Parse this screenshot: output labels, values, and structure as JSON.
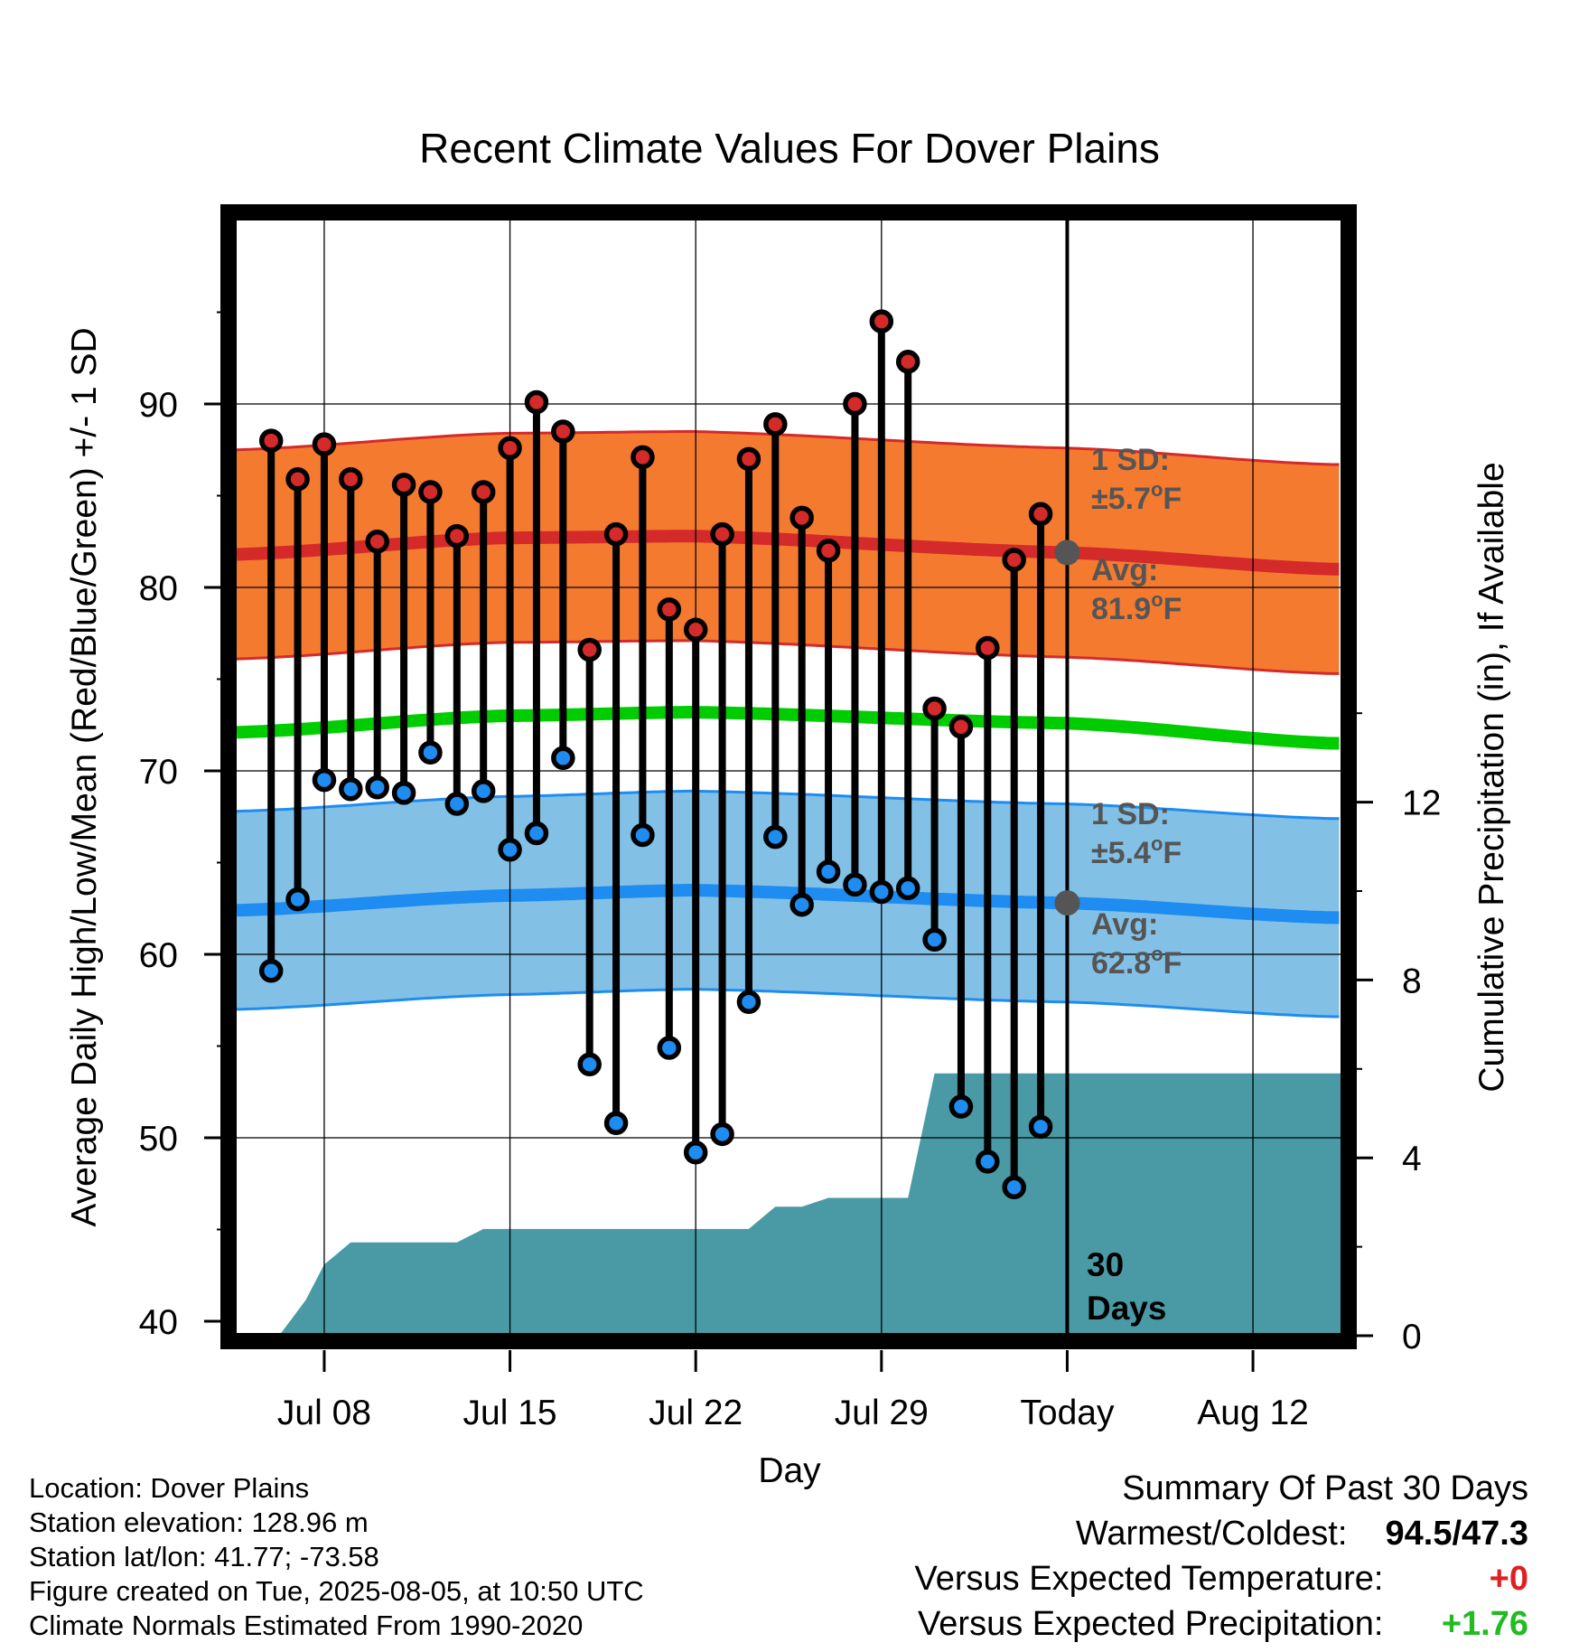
{
  "chart_data": {
    "type": "line",
    "title": "Recent Climate Values For Dover Plains",
    "xlabel": "Day",
    "ylabel": "Average Daily High/Low/Mean (Red/Blue/Green) +/- 1 SD",
    "y2label": "Cumulative Precipitation (in), If Available",
    "ylim": [
      40,
      100
    ],
    "y2lim": [
      0,
      26.2
    ],
    "yticks": [
      "40",
      "50",
      "60",
      "70",
      "80",
      "90"
    ],
    "y2ticks": [
      "0",
      "4",
      "8",
      "12"
    ],
    "x_tick_labels": [
      {
        "day": 8,
        "label": "Jul 08"
      },
      {
        "day": 15,
        "label": "Jul 15"
      },
      {
        "day": 22,
        "label": "Jul 22"
      },
      {
        "day": 29,
        "label": "Jul 29"
      },
      {
        "day": 36,
        "label": "Today"
      },
      {
        "day": 43,
        "label": "Aug 12"
      }
    ],
    "xlim": [
      4.7,
      46.3
    ],
    "grid": true,
    "days": [
      6,
      7,
      8,
      9,
      10,
      11,
      12,
      13,
      14,
      15,
      16,
      17,
      18,
      19,
      20,
      21,
      22,
      23,
      24,
      25,
      26,
      27,
      28,
      29,
      30,
      31,
      32,
      33,
      34,
      35
    ],
    "daily_high": [
      88.0,
      85.9,
      87.8,
      85.9,
      82.5,
      85.6,
      85.2,
      82.8,
      85.2,
      87.6,
      90.1,
      88.5,
      76.6,
      82.9,
      87.1,
      78.8,
      77.7,
      82.9,
      87.0,
      88.9,
      83.8,
      82.0,
      90.0,
      94.5,
      92.3,
      73.4,
      72.4,
      76.7,
      81.5,
      84.0
    ],
    "daily_low": [
      59.1,
      63.0,
      69.5,
      69.0,
      69.1,
      68.8,
      71.0,
      68.2,
      68.9,
      65.7,
      66.6,
      70.7,
      54.0,
      50.8,
      66.5,
      54.9,
      49.2,
      50.2,
      57.4,
      66.4,
      62.7,
      64.5,
      63.8,
      63.4,
      63.6,
      60.8,
      51.7,
      48.7,
      47.3,
      50.6
    ],
    "normal_high_avg": [
      81.8,
      82.7,
      82.8,
      81.9,
      81.0
    ],
    "normal_low_avg": [
      62.4,
      63.2,
      63.5,
      62.8,
      62.0
    ],
    "normal_mean": [
      72.1,
      73.0,
      73.2,
      72.6,
      71.5
    ],
    "normal_curve_days": [
      5,
      15,
      22,
      36,
      46
    ],
    "normal_sd_high": 5.7,
    "normal_sd_low": 5.4,
    "precip_cumulative": {
      "days": [
        5.4,
        6.3,
        7.3,
        8,
        9,
        10,
        11,
        12,
        13,
        14,
        15,
        16,
        17,
        18,
        19,
        20,
        21,
        22,
        23,
        24,
        25,
        26,
        27,
        28,
        29,
        30,
        31,
        32,
        33,
        34,
        35,
        36,
        37,
        46.3
      ],
      "values": [
        0,
        0,
        0.8,
        1.6,
        2.1,
        2.1,
        2.1,
        2.1,
        2.1,
        2.4,
        2.4,
        2.4,
        2.4,
        2.4,
        2.4,
        2.4,
        2.4,
        2.4,
        2.4,
        2.4,
        2.9,
        2.9,
        3.1,
        3.1,
        3.1,
        3.1,
        5.9,
        5.9,
        5.9,
        5.9,
        5.9,
        5.9,
        5.9,
        5.9
      ]
    },
    "today_day": 36,
    "annotations": {
      "high_sd_line1": "1 SD:",
      "high_sd_line2": "±5.7",
      "high_avg_line1": "Avg:",
      "high_avg_line2": "81.9",
      "low_sd_line1": "1 SD:",
      "low_sd_line2": "±5.4",
      "low_avg_line1": "Avg:",
      "low_avg_line2": "62.8",
      "degree_unit": "o",
      "unit": "F",
      "period_line1": "30",
      "period_line2": "Days"
    },
    "colors": {
      "high_band": "#f47a30",
      "high_line": "#d42a2a",
      "low_band": "#82c0e6",
      "low_line": "#1e8cf0",
      "mean_line": "#00cc00",
      "precip": "#4a9aa5",
      "high_dot": "#d42a2a",
      "low_dot": "#1e8cf0",
      "annotation": "#555555"
    }
  },
  "footer": {
    "location": "Location: Dover Plains",
    "elevation": "Station elevation: 128.96 m",
    "latlon": "Station lat/lon: 41.77; -73.58",
    "created": "Figure created on Tue, 2025-08-05, at 10:50 UTC",
    "normals": "Climate Normals Estimated From 1990-2020"
  },
  "summary": {
    "heading": "Summary Of Past 30 Days",
    "warm_cold_label": "Warmest/Coldest:",
    "warm_cold_value": "94.5/47.3",
    "temp_label": "Versus Expected Temperature:",
    "temp_value": "+0",
    "temp_color": "#e02020",
    "precip_label": "Versus Expected Precipitation:",
    "precip_value": "+1.76",
    "precip_color": "#22bb22"
  }
}
